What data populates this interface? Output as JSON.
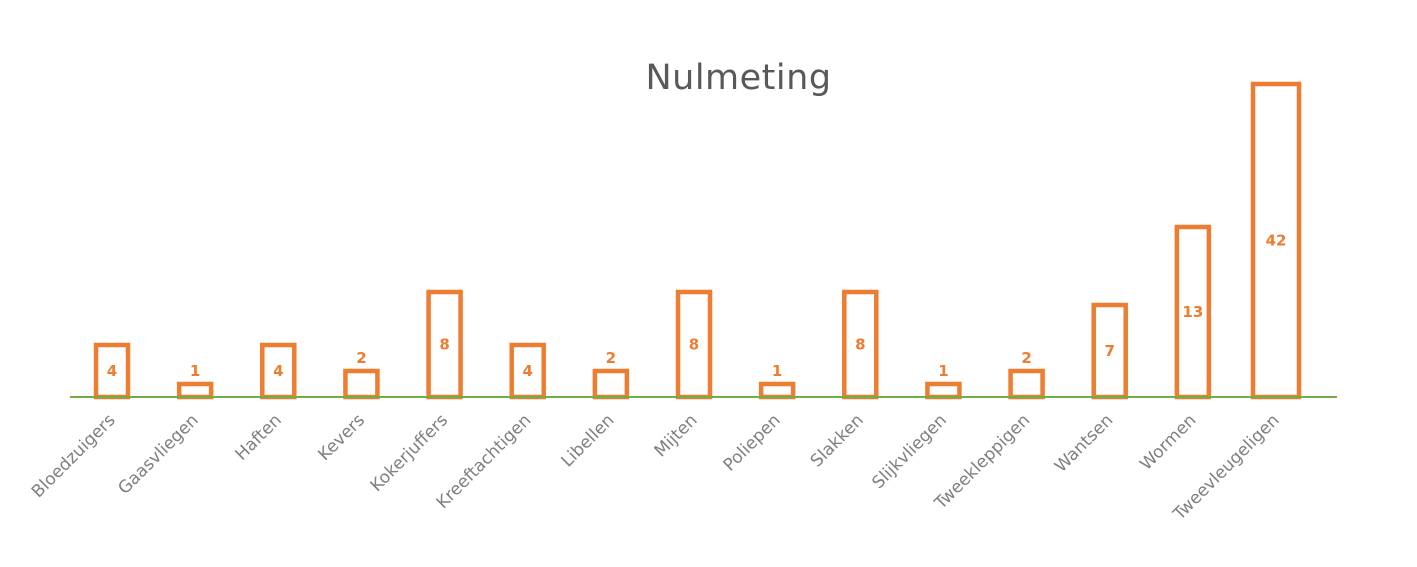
{
  "chart_data": {
    "type": "bar",
    "title": "Nulmeting",
    "xlabel": "",
    "ylabel": "",
    "categories": [
      "Bloedzuigers",
      "Gaasvliegen",
      "Haften",
      "Kevers",
      "Kokerjuffers",
      "Kreeftachtigen",
      "Libellen",
      "Mijten",
      "Poliepen",
      "Slakken",
      "Slijkvliegen",
      "Tweekleppigen",
      "Wantsen",
      "Wormen",
      "Tweevleugeligen"
    ],
    "values": [
      4,
      1,
      4,
      2,
      8,
      4,
      2,
      8,
      1,
      8,
      1,
      2,
      7,
      13,
      42
    ],
    "axis_scale": "non-linear",
    "gridlines": false,
    "legend": "none",
    "data_labels": true,
    "colors": {
      "bar_outline": "#ED7D31",
      "bar_fill": "#FFFFFF",
      "axis_line": "#70AD47",
      "title": "#595959",
      "tick_label": "#7F7F7F"
    }
  }
}
